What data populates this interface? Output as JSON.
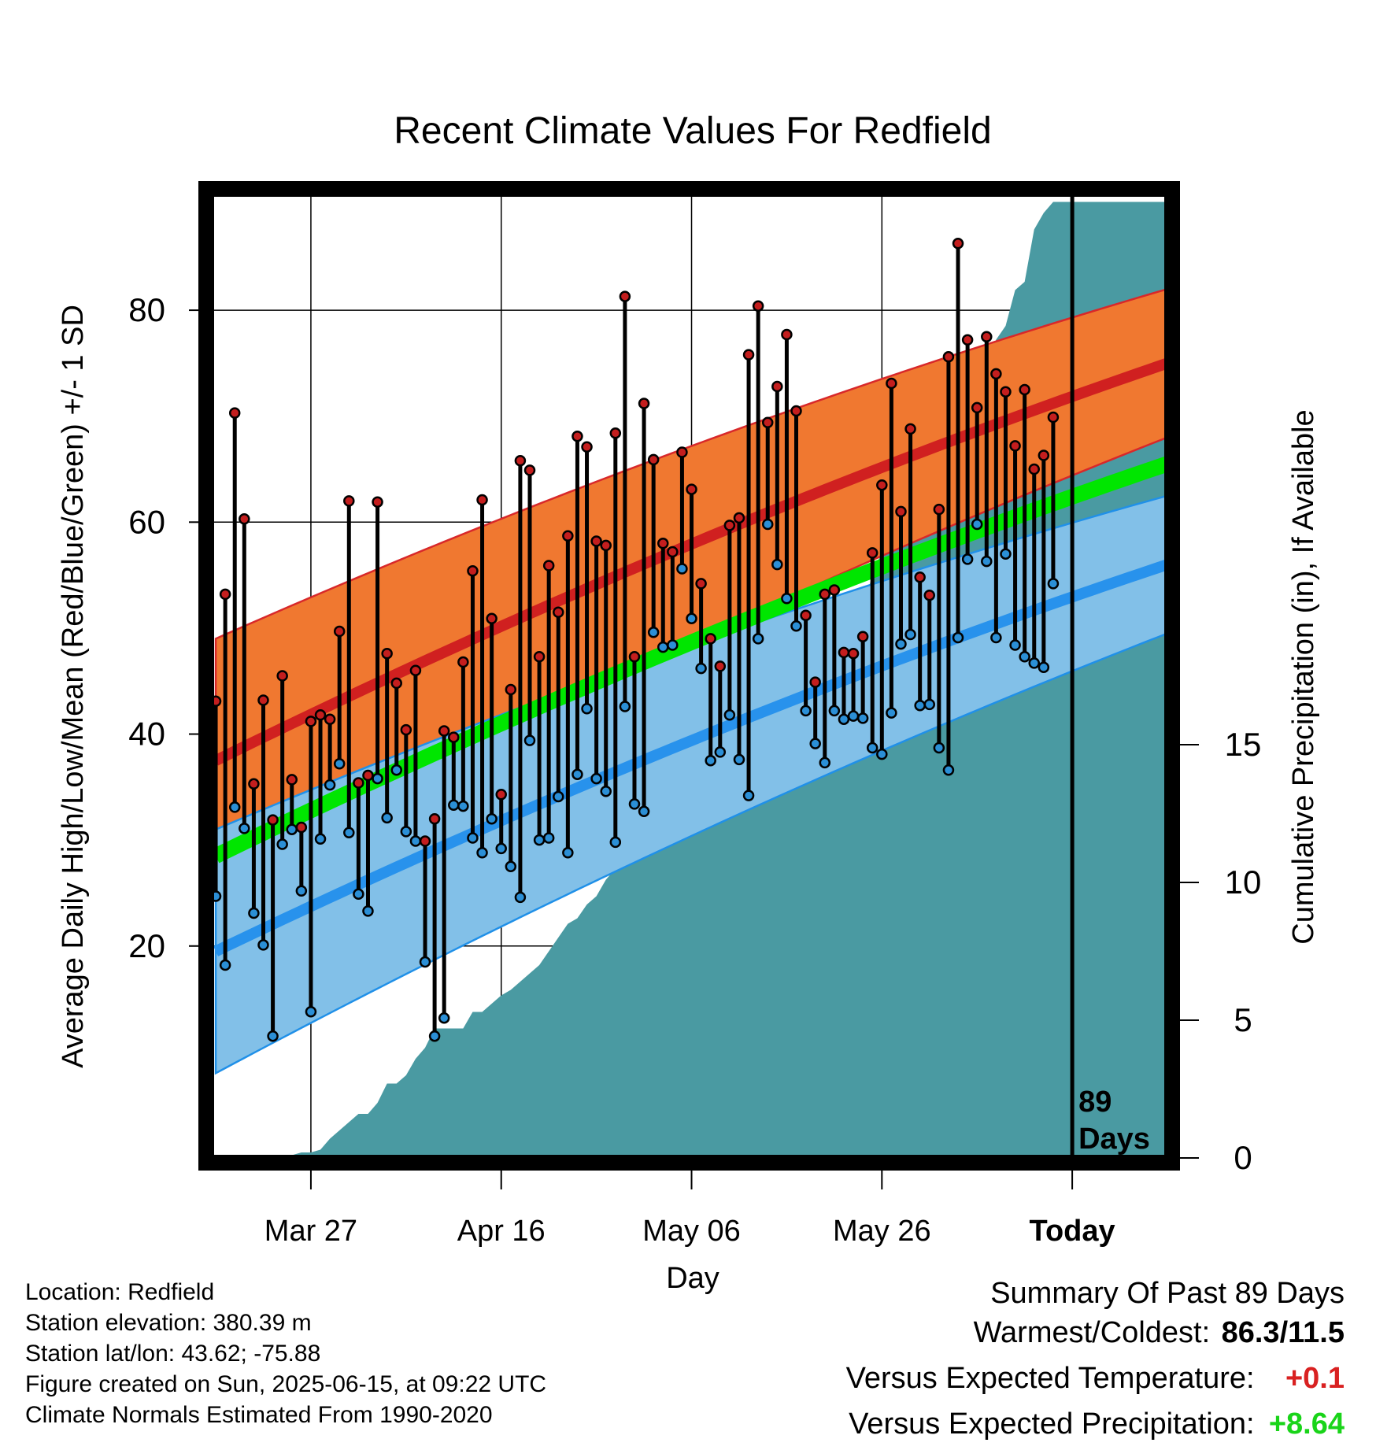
{
  "chart_data": {
    "type": "line",
    "title": "Recent Climate Values For Redfield",
    "xlabel": "Day",
    "ylabel": "Average Daily High/Low/Mean (Red/Blue/Green) +/- 1 SD",
    "y2label": "Cumulative Precipitation (in), If Available",
    "x_ticks": [
      "Mar 27",
      "Apr 16",
      "May 06",
      "May 26",
      "Today"
    ],
    "x_tick_days": [
      10,
      30,
      50,
      70,
      90
    ],
    "x_range": [
      -0.5,
      100
    ],
    "ylim": [
      0,
      91
    ],
    "y_ticks": [
      20,
      40,
      60,
      80
    ],
    "y2lim": [
      0,
      35
    ],
    "y2_ticks": [
      0,
      5,
      10,
      15
    ],
    "grid": true,
    "today_day": 90,
    "today_label": [
      "89",
      "Days"
    ],
    "normals": {
      "high_mean_start": 37.5,
      "high_mean_end": 75.0,
      "high_sd_start": 11.5,
      "high_sd_end": 7.0,
      "low_mean_start": 19.5,
      "low_mean_end": 56.0,
      "low_sd_start": 11.5,
      "low_sd_end": 6.5,
      "mean_start": 28.5,
      "mean_end": 65.5
    },
    "series": [
      {
        "name": "High",
        "color": "#c41e1e",
        "values": [
          43.1,
          53.2,
          70.3,
          60.3,
          35.3,
          43.2,
          31.9,
          45.5,
          35.7,
          31.2,
          41.2,
          41.8,
          41.4,
          49.7,
          62.0,
          35.4,
          36.1,
          61.9,
          47.6,
          44.8,
          40.4,
          46.0,
          29.9,
          32.0,
          40.3,
          39.7,
          46.8,
          55.4,
          62.1,
          50.9,
          34.3,
          44.2,
          65.8,
          64.9,
          47.3,
          55.9,
          51.5,
          58.7,
          68.1,
          67.1,
          58.2,
          57.8,
          68.4,
          81.3,
          47.3,
          71.2,
          65.9,
          58.0,
          57.2,
          66.6,
          63.1,
          54.2,
          49.0,
          46.4,
          59.7,
          60.4,
          75.8,
          80.4,
          69.4,
          72.8,
          77.7,
          70.5,
          51.2,
          44.9,
          53.2,
          53.6,
          47.7,
          47.6,
          49.2,
          57.1,
          63.5,
          73.1,
          61.0,
          68.8,
          54.8,
          53.1,
          61.2,
          75.6,
          86.3,
          77.2,
          70.8,
          77.5,
          74.0,
          72.3,
          67.2,
          72.5,
          65.0,
          66.3,
          69.9
        ]
      },
      {
        "name": "Low",
        "color": "#2b8fd6",
        "values": [
          24.7,
          18.2,
          33.1,
          31.1,
          23.1,
          20.1,
          11.5,
          29.6,
          31.0,
          25.2,
          13.8,
          30.1,
          35.2,
          37.2,
          30.7,
          24.9,
          23.3,
          35.8,
          32.1,
          36.6,
          30.8,
          29.9,
          18.5,
          11.5,
          13.2,
          33.3,
          33.2,
          30.2,
          28.8,
          32.0,
          29.2,
          27.5,
          24.6,
          39.4,
          30.0,
          30.2,
          34.1,
          28.8,
          36.2,
          42.4,
          35.8,
          34.6,
          29.8,
          42.6,
          33.4,
          32.7,
          49.6,
          48.2,
          48.4,
          55.6,
          50.9,
          46.2,
          37.5,
          38.3,
          41.8,
          37.6,
          34.2,
          49.0,
          59.8,
          56.0,
          52.8,
          50.2,
          42.2,
          39.1,
          37.3,
          42.2,
          41.4,
          41.7,
          41.5,
          38.7,
          38.1,
          42.0,
          48.5,
          49.4,
          42.7,
          42.8,
          38.7,
          36.6,
          49.1,
          56.5,
          59.8,
          56.3,
          49.1,
          57.0,
          48.4,
          47.3,
          46.7,
          46.3,
          54.2
        ]
      },
      {
        "name": "Cumulative Precipitation",
        "color": "#4a9aa2",
        "values": [
          0.0,
          0.0,
          0.0,
          0.0,
          0.0,
          0.0,
          0.0,
          0.05,
          0.1,
          0.2,
          0.2,
          0.3,
          0.7,
          1.0,
          1.3,
          1.6,
          1.6,
          2.0,
          2.7,
          2.7,
          3.0,
          3.6,
          4.0,
          4.7,
          4.7,
          4.7,
          4.7,
          5.3,
          5.3,
          5.6,
          5.9,
          6.1,
          6.4,
          6.7,
          7.0,
          7.5,
          8.0,
          8.5,
          8.7,
          9.2,
          9.5,
          10.1,
          10.5,
          11.0,
          11.1,
          11.3,
          12.4,
          12.6,
          12.8,
          12.9,
          13.7,
          13.8,
          14.4,
          14.6,
          15.1,
          15.6,
          15.6,
          15.8,
          15.8,
          15.9,
          15.9,
          16.5,
          16.7,
          17.0,
          17.3,
          18.2,
          18.6,
          19.2,
          19.8,
          21.2,
          22.0,
          24.2,
          24.3,
          24.3,
          24.4,
          24.4,
          25.8,
          25.8,
          26.2,
          27.0,
          27.6,
          28.5,
          29.7,
          30.2,
          31.5,
          31.8,
          33.7,
          34.3,
          34.7
        ]
      }
    ]
  },
  "footer": {
    "location": "Location: Redfield",
    "elevation": "Station elevation: 380.39 m",
    "latlon": "Station lat/lon: 43.62; -75.88",
    "created": "Figure created on Sun, 2025-06-15, at 09:22 UTC",
    "normals": "Climate Normals Estimated From 1990-2020"
  },
  "summary": {
    "heading": "Summary Of Past 89 Days",
    "warm_cold_label": "Warmest/Coldest:",
    "warm_cold_value": "86.3/11.5",
    "temp_label": "Versus Expected Temperature:",
    "temp_value": "+0.1",
    "temp_color": "#d92121",
    "precip_label": "Versus Expected Precipitation:",
    "precip_value": "+8.64",
    "precip_color": "#19d419"
  }
}
